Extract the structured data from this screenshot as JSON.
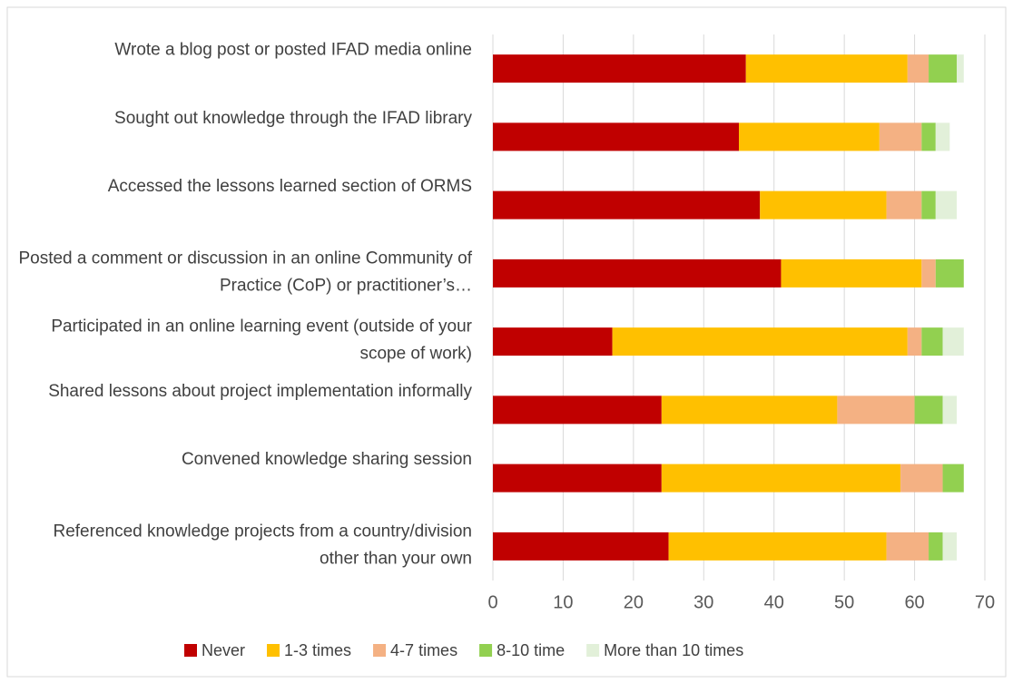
{
  "chart_data": {
    "type": "stacked_bar_horizontal",
    "categories": [
      "Wrote a blog post or posted IFAD media online",
      "Sought out knowledge through the IFAD library",
      "Accessed the lessons learned section of ORMS",
      "Posted a comment or discussion in an online Community of Practice (CoP) or practitioner’s…",
      "Participated in an online learning event (outside of your scope of work)",
      "Shared lessons about project implementation informally",
      "Convened knowledge sharing session",
      "Referenced knowledge projects from a country/division other than your own"
    ],
    "series": [
      {
        "name": "Never",
        "color": "#c00000",
        "values": [
          36,
          35,
          38,
          41,
          17,
          24,
          24,
          25
        ]
      },
      {
        "name": "1-3 times",
        "color": "#ffc000",
        "values": [
          23,
          20,
          18,
          20,
          42,
          25,
          34,
          31
        ]
      },
      {
        "name": "4-7 times",
        "color": "#f4b183",
        "values": [
          3,
          6,
          5,
          2,
          2,
          11,
          6,
          6
        ]
      },
      {
        "name": "8-10 time",
        "color": "#92d050",
        "values": [
          4,
          2,
          2,
          4,
          3,
          4,
          3,
          2
        ]
      },
      {
        "name": "More than 10 times",
        "color": "#e2f0d9",
        "values": [
          1,
          2,
          3,
          0,
          3,
          2,
          0,
          2
        ]
      }
    ],
    "xlim": [
      0,
      70
    ],
    "xticks": [
      0,
      10,
      20,
      30,
      40,
      50,
      60,
      70
    ],
    "grid": true,
    "legend": "bottom"
  }
}
